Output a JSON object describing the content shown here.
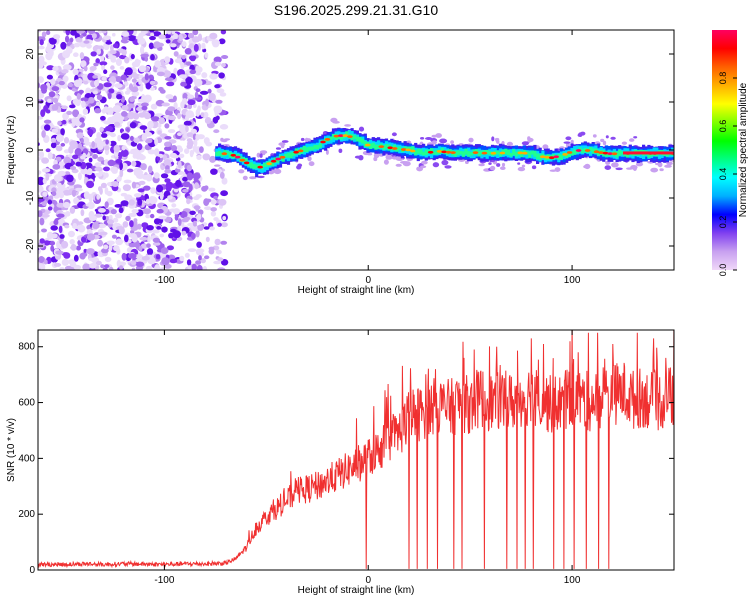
{
  "chart_data": [
    {
      "type": "heatmap",
      "title": "S196.2025.299.21.31.G10",
      "xlabel": "Height of straight line (km)",
      "ylabel": "Frequency (Hz)",
      "xlim": [
        -162,
        150
      ],
      "ylim": [
        -25,
        25
      ],
      "x_ticks": [
        -100,
        0,
        100
      ],
      "y_ticks": [
        -20,
        -10,
        0,
        10,
        20
      ],
      "colorbar": {
        "label": "Normalized spectral amplitude",
        "range": [
          0,
          1
        ],
        "ticks": [
          0.0,
          0.2,
          0.4,
          0.6,
          0.8
        ],
        "tick_labels": [
          "0.0",
          "0.2",
          "0.4",
          "0.6",
          "0.8"
        ],
        "colors": [
          "#f0d8f8",
          "#c8a0f0",
          "#8040f0",
          "#0000ff",
          "#00b0ff",
          "#00ffff",
          "#00ff80",
          "#00ff00",
          "#80ff00",
          "#ffff00",
          "#ffb000",
          "#ff6000",
          "#ff0000",
          "#ff0060"
        ]
      },
      "noise_region": {
        "x_range": [
          -162,
          -74
        ],
        "y_range": [
          -25,
          25
        ]
      },
      "signal_track": {
        "x": [
          -75,
          -70,
          -65,
          -60,
          -55,
          -50,
          -45,
          -40,
          -35,
          -30,
          -25,
          -20,
          -15,
          -10,
          -5,
          0,
          5,
          10,
          15,
          20,
          25,
          30,
          35,
          40,
          45,
          50,
          55,
          60,
          65,
          70,
          75,
          80,
          85,
          90,
          95,
          100,
          105,
          110,
          115,
          120,
          125,
          130,
          135,
          140,
          145,
          150
        ],
        "y": [
          -0.5,
          -0.8,
          -1.2,
          -2.6,
          -3.8,
          -3.2,
          -2.0,
          -1.2,
          -0.4,
          0.2,
          1.0,
          2.2,
          3.0,
          3.0,
          2.0,
          1.0,
          0.8,
          0.5,
          0.2,
          0.0,
          -0.6,
          -0.5,
          -0.3,
          -0.5,
          -0.6,
          -0.5,
          -0.6,
          -0.7,
          -0.6,
          -0.7,
          -0.6,
          -0.8,
          -1.4,
          -1.6,
          -1.2,
          -0.3,
          0.0,
          -0.2,
          -0.6,
          -0.8,
          -0.7,
          -0.7,
          -0.7,
          -0.7,
          -0.7,
          -0.7
        ]
      }
    },
    {
      "type": "line",
      "title": "",
      "xlabel": "Height of straight line (km)",
      "ylabel": "SNR (10 * v/v)",
      "xlim": [
        -162,
        150
      ],
      "ylim": [
        0,
        860
      ],
      "x_ticks": [
        -100,
        0,
        100
      ],
      "y_ticks": [
        0,
        200,
        400,
        600,
        800
      ],
      "color": "#f03030",
      "series": [
        {
          "name": "SNR",
          "x": [
            -162,
            -150,
            -140,
            -130,
            -120,
            -110,
            -100,
            -90,
            -80,
            -70,
            -65,
            -60,
            -55,
            -50,
            -45,
            -40,
            -35,
            -30,
            -25,
            -20,
            -15,
            -10,
            -5,
            0,
            5,
            10,
            15,
            20,
            25,
            30,
            35,
            40,
            45,
            50,
            55,
            60,
            65,
            70,
            75,
            80,
            85,
            90,
            95,
            100,
            105,
            110,
            115,
            120,
            125,
            130,
            135,
            140,
            145,
            150
          ],
          "y": [
            20,
            20,
            22,
            20,
            22,
            21,
            20,
            22,
            22,
            24,
            40,
            80,
            150,
            190,
            220,
            250,
            280,
            290,
            300,
            320,
            340,
            360,
            380,
            400,
            430,
            460,
            490,
            550,
            560,
            580,
            590,
            580,
            600,
            590,
            620,
            600,
            610,
            600,
            620,
            630,
            610,
            590,
            600,
            620,
            610,
            600,
            620,
            630,
            640,
            610,
            620,
            600,
            610,
            630
          ]
        }
      ],
      "dropouts_x": [
        -1,
        20,
        24,
        29,
        34,
        42,
        46,
        52,
        57,
        63,
        68,
        73,
        77,
        81,
        86,
        91,
        96,
        101,
        107,
        113,
        118
      ],
      "spikes": [
        {
          "x": 33,
          "y": 720
        },
        {
          "x": 47,
          "y": 760
        },
        {
          "x": 52,
          "y": 790
        },
        {
          "x": 63,
          "y": 800
        },
        {
          "x": 80,
          "y": 830
        },
        {
          "x": 86,
          "y": 810
        },
        {
          "x": 99,
          "y": 820
        },
        {
          "x": 103,
          "y": 780
        },
        {
          "x": 108,
          "y": 850
        },
        {
          "x": 120,
          "y": 810
        },
        {
          "x": 132,
          "y": 850
        },
        {
          "x": 140,
          "y": 830
        },
        {
          "x": 146,
          "y": 760
        }
      ]
    }
  ]
}
